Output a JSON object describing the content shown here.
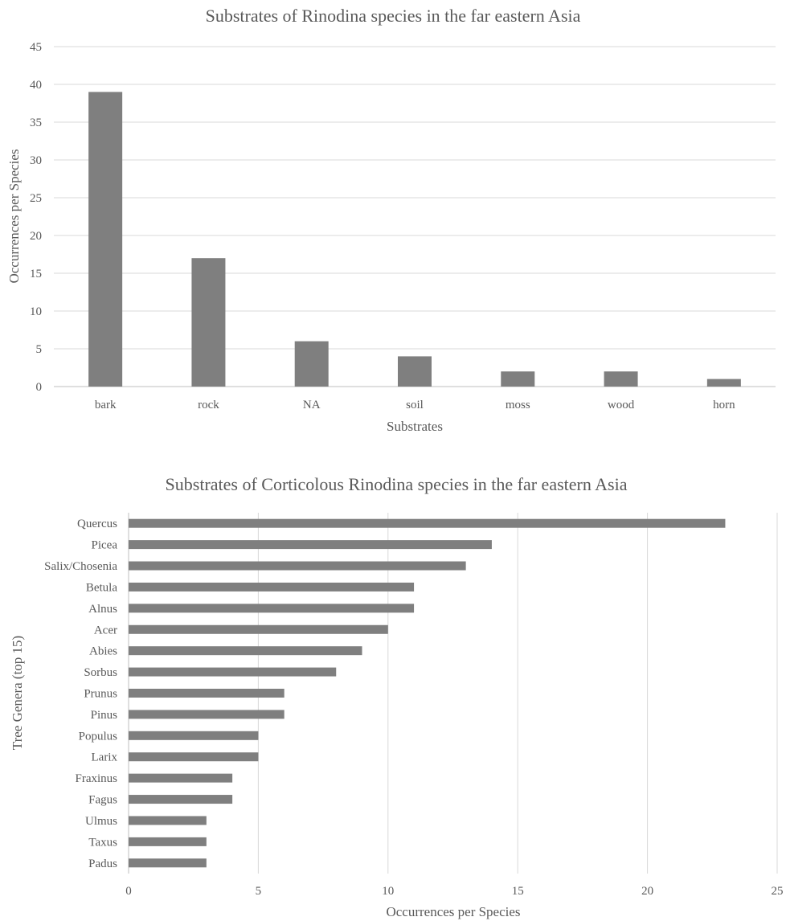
{
  "chart_data": [
    {
      "type": "bar",
      "orientation": "vertical",
      "title": "Substrates of Rinodina species in the far eastern Asia",
      "xlabel": "Substrates",
      "ylabel": "Occurrences per Species",
      "categories": [
        "bark",
        "rock",
        "NA",
        "soil",
        "moss",
        "wood",
        "horn"
      ],
      "values": [
        39,
        17,
        6,
        4,
        2,
        2,
        1
      ],
      "ylim": [
        0,
        45
      ],
      "yticks": [
        0,
        5,
        10,
        15,
        20,
        25,
        30,
        35,
        40,
        45
      ],
      "grid": true,
      "bar_color": "#7f7f7f"
    },
    {
      "type": "bar",
      "orientation": "horizontal",
      "title": "Substrates of Corticolous Rinodina species in the far eastern Asia",
      "xlabel": "Occurrences per Species",
      "ylabel": "Tree Genera (top 15)",
      "categories": [
        "Quercus",
        "Picea",
        "Salix/Chosenia",
        "Betula",
        "Alnus",
        "Acer",
        "Abies",
        "Sorbus",
        "Prunus",
        "Pinus",
        "Populus",
        "Larix",
        "Fraxinus",
        "Fagus",
        "Ulmus",
        "Taxus",
        "Padus"
      ],
      "values": [
        23,
        14,
        13,
        11,
        11,
        10,
        9,
        8,
        6,
        6,
        5,
        5,
        4,
        4,
        3,
        3,
        3
      ],
      "xlim": [
        0,
        25
      ],
      "xticks": [
        0,
        5,
        10,
        15,
        20,
        25
      ],
      "grid": true,
      "bar_color": "#7f7f7f"
    }
  ]
}
